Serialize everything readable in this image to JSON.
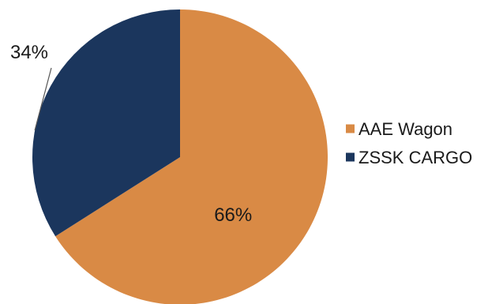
{
  "chart_data": {
    "type": "pie",
    "categories": [
      "AAE Wagon",
      "ZSSK CARGO"
    ],
    "values": [
      66,
      34
    ],
    "labels": [
      "66%",
      "34%"
    ],
    "colors": [
      "#D98A45",
      "#1B365D"
    ],
    "legend": {
      "position": "right",
      "entries": [
        "AAE Wagon",
        "ZSSK CARGO"
      ]
    }
  }
}
